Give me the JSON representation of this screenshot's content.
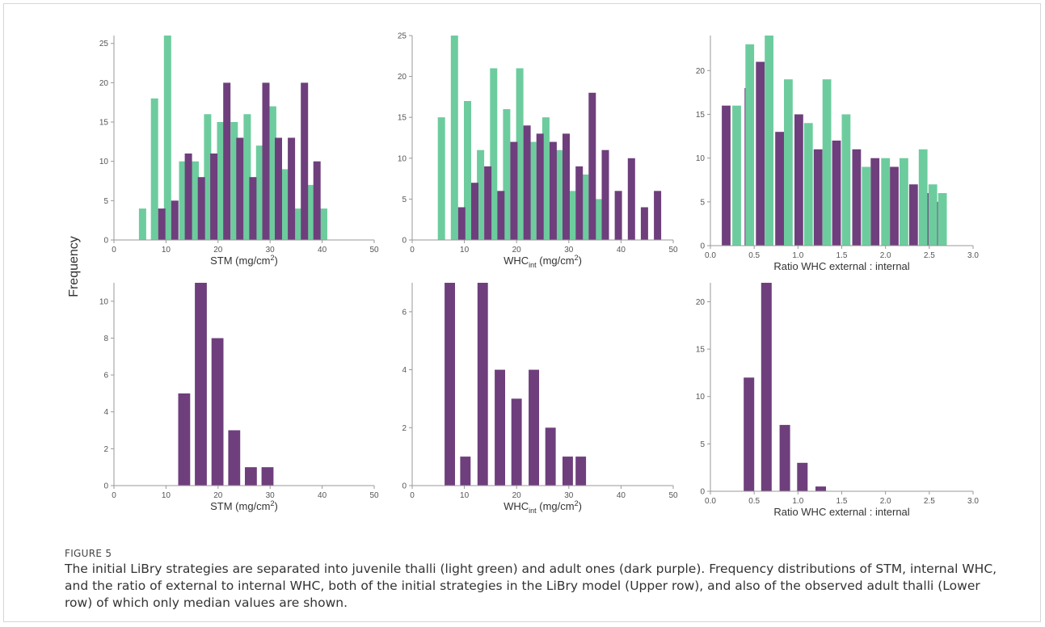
{
  "figure": {
    "ylabel": "Frequency",
    "label": "FIGURE 5",
    "caption": "The initial LiBry strategies are separated into juvenile thalli (light green) and adult ones (dark purple). Frequency distributions of STM, internal WHC, and the ratio of external to internal WHC, both of the initial strategies in the LiBry model (Upper row), and also of the observed adult thalli (Lower row) of which only median values are shown."
  },
  "colors": {
    "juvenile": "#6dcc9e",
    "adult": "#6e3f7c",
    "axis": "#999999",
    "tick_text": "#555555"
  },
  "chart_data": [
    {
      "type": "bar",
      "row": "upper",
      "xlabel": "STM (mg/cm²)",
      "xlabel_parts": [
        "STM (mg/cm",
        "2",
        ")"
      ],
      "xlabel_style": "sup",
      "xlim": [
        0,
        50
      ],
      "ylim": [
        0,
        26
      ],
      "xticks": [
        0,
        10,
        20,
        30,
        40,
        50
      ],
      "yticks": [
        0,
        5,
        10,
        15,
        20,
        25
      ],
      "bar_width": 1.4,
      "series": [
        {
          "key": "juvenile",
          "x": [
            5.5,
            7.8,
            10.3,
            13.2,
            15.6,
            18.0,
            20.5,
            23.1,
            25.6,
            28.0,
            30.5,
            32.9,
            35.4,
            37.8,
            40.3
          ],
          "values": [
            4,
            18,
            26,
            10,
            10,
            16,
            15,
            15,
            16,
            12,
            17,
            9,
            4,
            7,
            4
          ]
        },
        {
          "key": "adult",
          "x": [
            9.2,
            11.7,
            14.3,
            16.8,
            19.2,
            21.7,
            24.2,
            26.7,
            29.2,
            31.6,
            34.1,
            36.6,
            39.0
          ],
          "values": [
            4,
            5,
            11,
            8,
            11,
            20,
            13,
            8,
            20,
            13,
            13,
            20,
            10
          ]
        }
      ]
    },
    {
      "type": "bar",
      "row": "upper",
      "xlabel": "WHC_int (mg/cm²)",
      "xlabel_parts": [
        "WHC",
        "int",
        " (mg/cm",
        "2",
        ")"
      ],
      "xlabel_style": "sub-sup",
      "xlim": [
        0,
        50
      ],
      "ylim": [
        0,
        25
      ],
      "xticks": [
        0,
        10,
        20,
        30,
        40,
        50
      ],
      "yticks": [
        0,
        5,
        10,
        15,
        20,
        25
      ],
      "bar_width": 1.4,
      "series": [
        {
          "key": "juvenile",
          "x": [
            5.6,
            8.1,
            10.6,
            13.1,
            15.6,
            18.1,
            20.6,
            23.1,
            25.6,
            28.1,
            30.6,
            33.1,
            35.6
          ],
          "values": [
            15,
            25,
            17,
            11,
            21,
            16,
            21,
            12,
            15,
            11,
            6,
            8,
            5
          ]
        },
        {
          "key": "adult",
          "x": [
            9.5,
            12.0,
            14.5,
            17.0,
            19.5,
            22.0,
            24.5,
            27.0,
            29.5,
            32.0,
            34.5,
            37.0,
            39.5,
            42.0,
            44.5,
            47.0
          ],
          "values": [
            4,
            7,
            9,
            6,
            12,
            14,
            13,
            12,
            13,
            9,
            18,
            11,
            6,
            10,
            4,
            6
          ]
        }
      ]
    },
    {
      "type": "bar",
      "row": "upper",
      "xlabel": "Ratio WHC external : internal",
      "xlim": [
        0,
        3
      ],
      "ylim": [
        0,
        24
      ],
      "xticks": [
        0.0,
        0.5,
        1.0,
        1.5,
        2.0,
        2.5,
        3.0
      ],
      "xtick_labels": [
        "0.0",
        "0.5",
        "1.0",
        "1.5",
        "2.0",
        "2.5",
        "3.0"
      ],
      "yticks": [
        0,
        5,
        10,
        15,
        20
      ],
      "bar_width": 0.1,
      "series": [
        {
          "key": "adult",
          "x": [
            0.18,
            0.44,
            0.57,
            0.79,
            1.01,
            1.23,
            1.44,
            1.67,
            1.88,
            2.1,
            2.32,
            2.55
          ],
          "values": [
            16,
            18,
            21,
            13,
            15,
            11,
            12,
            11,
            10,
            9,
            7,
            5
          ]
        },
        {
          "key": "adult_b",
          "x": [
            2.45
          ],
          "values": [
            6
          ]
        },
        {
          "key": "juvenile",
          "x": [
            0.3,
            0.45,
            0.67,
            0.89,
            1.12,
            1.33,
            1.55,
            1.78,
            2.0,
            2.21,
            2.43,
            2.65
          ],
          "values": [
            16,
            23,
            24,
            19,
            14,
            19,
            15,
            9,
            10,
            10,
            11,
            6
          ]
        },
        {
          "key": "juvenile_b",
          "x": [
            2.54
          ],
          "values": [
            7
          ]
        }
      ]
    },
    {
      "type": "bar",
      "row": "lower",
      "xlabel": "STM (mg/cm²)",
      "xlabel_parts": [
        "STM (mg/cm",
        "2",
        ")"
      ],
      "xlabel_style": "sup",
      "xlim": [
        0,
        50
      ],
      "ylim": [
        0,
        11
      ],
      "xticks": [
        0,
        10,
        20,
        30,
        40,
        50
      ],
      "yticks": [
        0,
        2,
        4,
        6,
        8,
        10
      ],
      "bar_width": 2.3,
      "series": [
        {
          "key": "adult",
          "x": [
            13.5,
            16.7,
            19.9,
            23.1,
            26.3,
            29.5
          ],
          "values": [
            5,
            11,
            8,
            3,
            1,
            1
          ]
        }
      ]
    },
    {
      "type": "bar",
      "row": "lower",
      "xlabel": "WHC_int (mg/cm²)",
      "xlabel_parts": [
        "WHC",
        "int",
        " (mg/cm",
        "2",
        ")"
      ],
      "xlabel_style": "sub-sup",
      "xlim": [
        0,
        50
      ],
      "ylim": [
        0,
        7
      ],
      "xticks": [
        0,
        10,
        20,
        30,
        40,
        50
      ],
      "yticks": [
        0,
        2,
        4,
        6
      ],
      "bar_width": 2.0,
      "series": [
        {
          "key": "adult",
          "x": [
            7.2,
            10.2,
            13.5,
            16.8,
            20.0,
            23.3,
            26.5,
            29.8,
            32.6
          ],
          "values": [
            7,
            1,
            7,
            4,
            3,
            4,
            2,
            1,
            0
          ]
        },
        {
          "key": "adult_c",
          "x": [
            32.3
          ],
          "values": [
            1
          ]
        }
      ]
    },
    {
      "type": "bar",
      "row": "lower",
      "xlabel": "Ratio WHC external : internal",
      "xlim": [
        0,
        3
      ],
      "ylim": [
        0,
        22
      ],
      "xticks": [
        0.0,
        0.5,
        1.0,
        1.5,
        2.0,
        2.5,
        3.0
      ],
      "xtick_labels": [
        "0.0",
        "0.5",
        "1.0",
        "1.5",
        "2.0",
        "2.5",
        "3.0"
      ],
      "yticks": [
        0,
        5,
        10,
        15,
        20
      ],
      "bar_width": 0.12,
      "series": [
        {
          "key": "adult",
          "x": [
            0.44,
            0.64,
            0.85,
            1.05,
            1.26
          ],
          "values": [
            12,
            22,
            7,
            3,
            0.5
          ]
        }
      ]
    }
  ]
}
